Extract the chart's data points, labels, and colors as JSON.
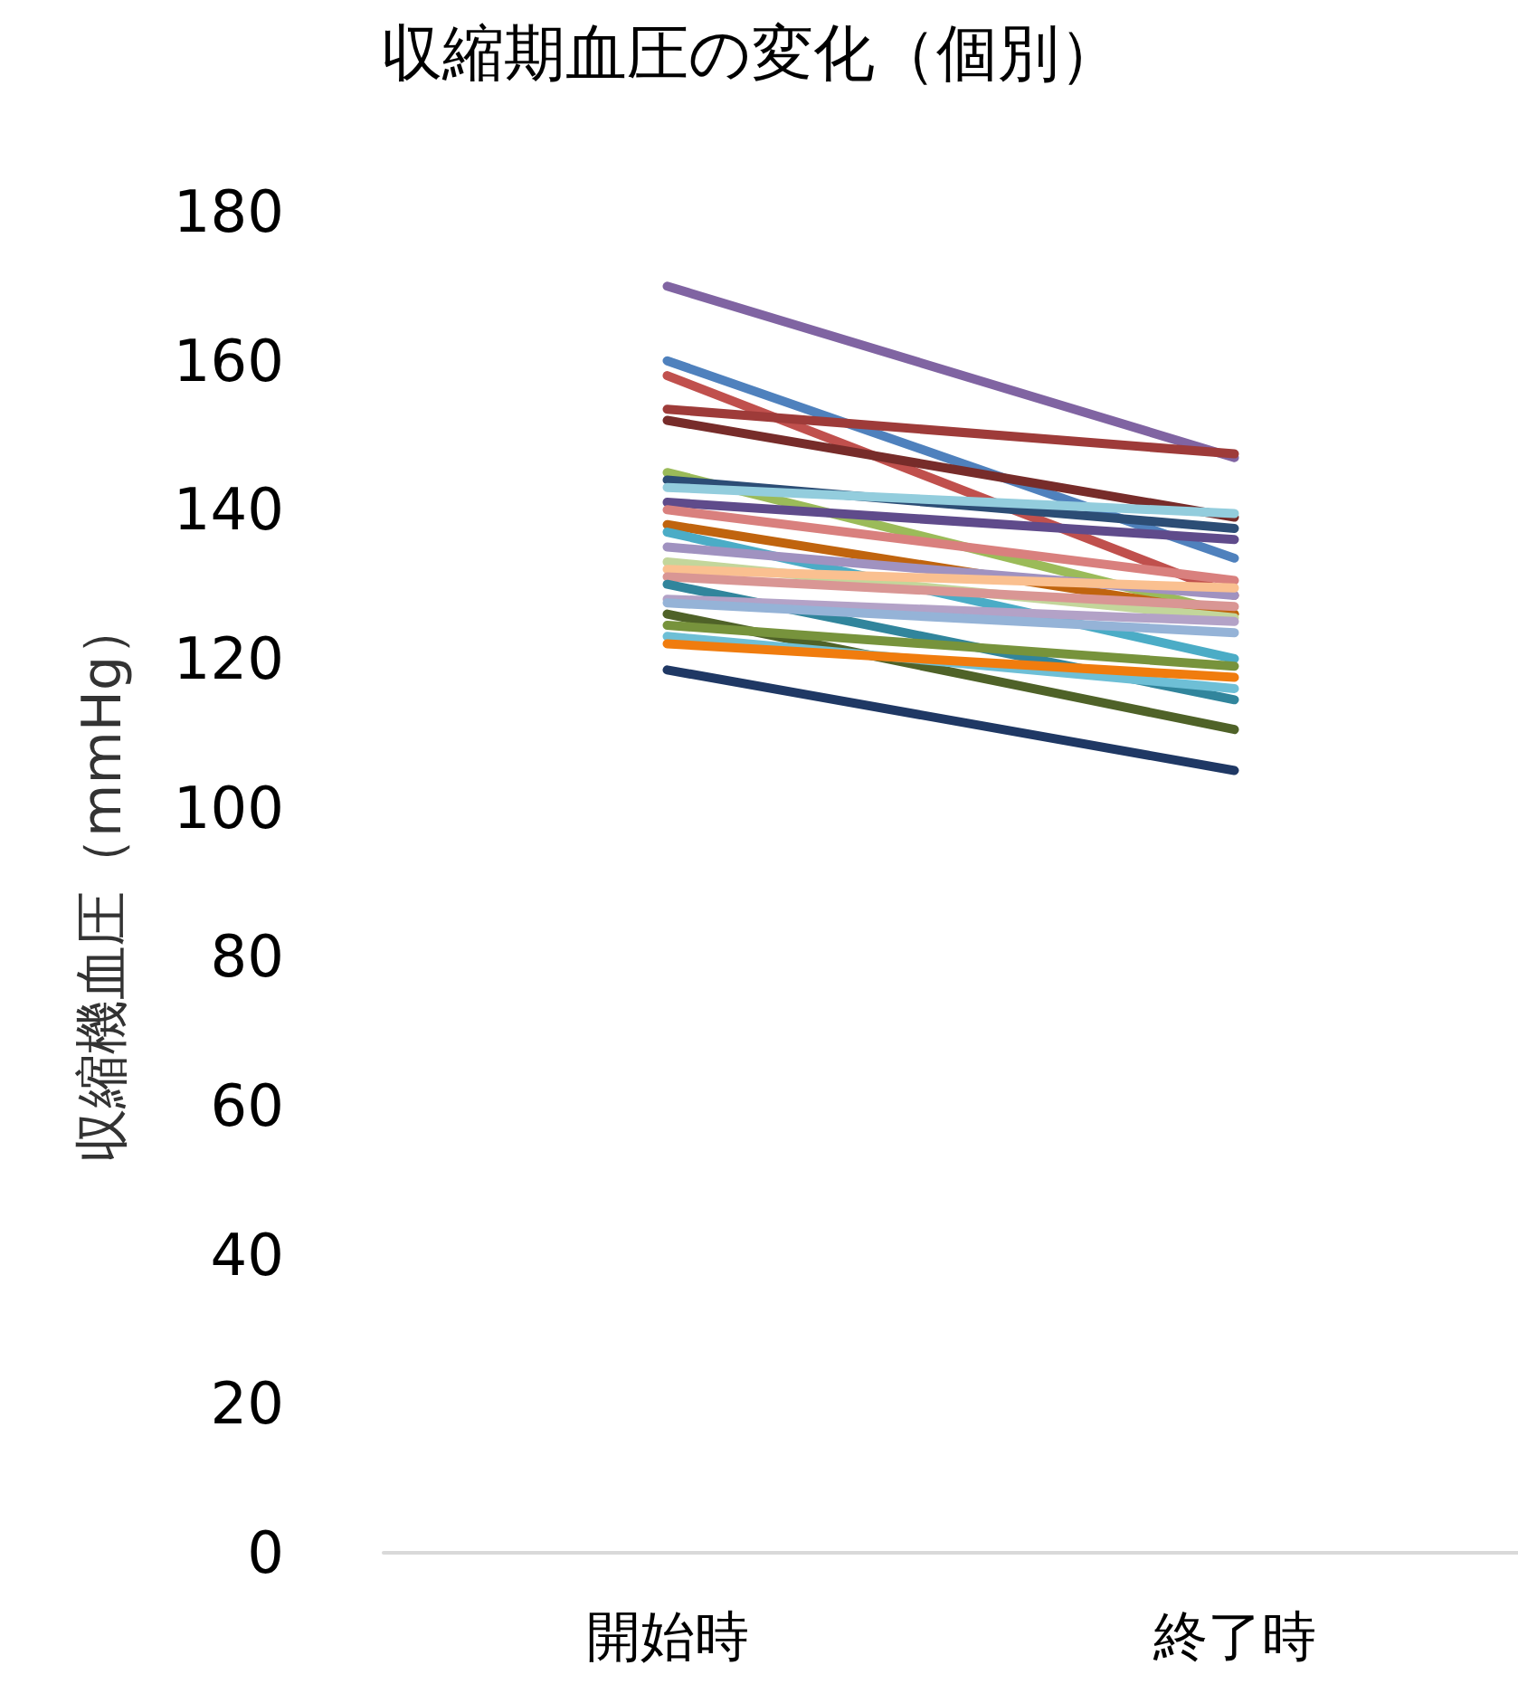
{
  "chart_data": {
    "type": "line",
    "title": "収縮期血圧の変化（個別）",
    "ylabel": "収縮機血圧（mmHg）",
    "categories": [
      "開始時",
      "終了時"
    ],
    "ylim": [
      0,
      180
    ],
    "yticks": [
      0,
      20,
      40,
      60,
      80,
      100,
      120,
      140,
      160,
      180
    ],
    "grid": false,
    "marker": "none",
    "line_style": "solid",
    "series": [
      {
        "color": "#8064a2",
        "values": [
          170,
          147
        ]
      },
      {
        "color": "#4f81bd",
        "values": [
          160,
          133.5
        ]
      },
      {
        "color": "#c0504d",
        "values": [
          158,
          128.5
        ]
      },
      {
        "color": "#9e3b39",
        "values": [
          153.5,
          147.5
        ]
      },
      {
        "color": "#772c2a",
        "values": [
          152,
          139
        ]
      },
      {
        "color": "#9bbb59",
        "values": [
          145,
          126
        ]
      },
      {
        "color": "#2c4d75",
        "values": [
          144,
          137.5
        ]
      },
      {
        "color": "#93cddd",
        "values": [
          143,
          139.5
        ]
      },
      {
        "color": "#5f4b8b",
        "values": [
          141,
          136
        ]
      },
      {
        "color": "#d9807e",
        "values": [
          140,
          130.5
        ]
      },
      {
        "color": "#c0640e",
        "values": [
          138,
          126
        ]
      },
      {
        "color": "#4bacc6",
        "values": [
          137,
          120
        ]
      },
      {
        "color": "#a092c0",
        "values": [
          135,
          128.5
        ]
      },
      {
        "color": "#c3d69b",
        "values": [
          133,
          125.5
        ]
      },
      {
        "color": "#fac090",
        "values": [
          132,
          129.5
        ]
      },
      {
        "color": "#d99694",
        "values": [
          131,
          127
        ]
      },
      {
        "color": "#31859c",
        "values": [
          130,
          114.5
        ]
      },
      {
        "color": "#b3a2c7",
        "values": [
          128,
          125
        ]
      },
      {
        "color": "#95b3d7",
        "values": [
          127.5,
          123.5
        ]
      },
      {
        "color": "#4f6228",
        "values": [
          126,
          110.5
        ]
      },
      {
        "color": "#77933c",
        "values": [
          124.5,
          119
        ]
      },
      {
        "color": "#6ebfd6",
        "values": [
          123,
          116
        ]
      },
      {
        "color": "#f07c0e",
        "values": [
          122,
          117.5
        ]
      },
      {
        "color": "#1f3864",
        "values": [
          118.5,
          105
        ]
      }
    ]
  }
}
